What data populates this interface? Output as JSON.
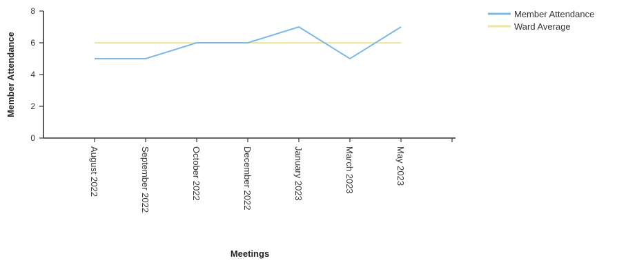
{
  "chart_data": {
    "type": "line",
    "categories": [
      "August 2022",
      "September 2022",
      "October 2022",
      "December 2022",
      "January 2023",
      "March 2023",
      "May 2023"
    ],
    "series": [
      {
        "name": "Member Attendance",
        "values": [
          5,
          5,
          6,
          6,
          7,
          5,
          7
        ],
        "color": "#7ab8e6"
      },
      {
        "name": "Ward Average",
        "values": [
          6,
          6,
          6,
          6,
          6,
          6,
          6
        ],
        "color": "#f0e49a"
      }
    ],
    "xlabel": "Meetings",
    "ylabel": "Member Attendance",
    "ylim": [
      0,
      8
    ],
    "yticks": [
      0,
      2,
      4,
      6,
      8
    ],
    "grid": false,
    "legend_position": "top-right",
    "x_tick_colors": [
      "#1c4f8a",
      "#1c4f8a",
      "#4a7aa8",
      "#555555",
      "#1c4f8a",
      "#555555",
      "#555555"
    ]
  }
}
